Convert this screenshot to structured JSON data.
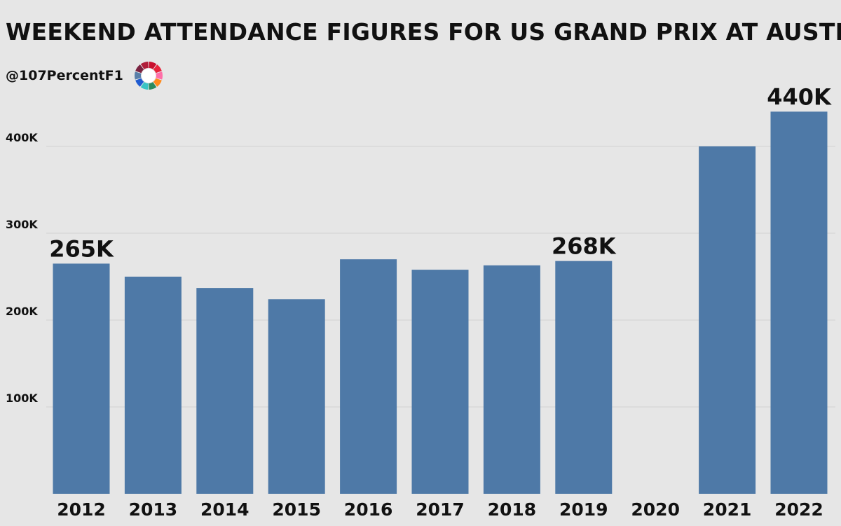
{
  "header": {
    "title": "WEEKEND ATTENDANCE FIGURES FOR US GRAND PRIX AT AUSTIN",
    "handle": "@107PercentF1",
    "logo_icon": "ring-logo-icon"
  },
  "colors": {
    "background": "#e6e6e6",
    "bar": "#4e79a7",
    "grid": "#d2d2d2",
    "text": "#111111",
    "logo_segments": [
      "#c8102e",
      "#e8233b",
      "#ff6fa8",
      "#ff8a1c",
      "#2a8a5e",
      "#39c4c4",
      "#1f5bd1",
      "#5a7fa8",
      "#7a2340",
      "#b01e3a"
    ]
  },
  "chart_data": {
    "type": "bar",
    "title": "WEEKEND ATTENDANCE FIGURES FOR US GRAND PRIX AT AUSTIN",
    "xlabel": "",
    "ylabel": "",
    "categories": [
      "2012",
      "2013",
      "2014",
      "2015",
      "2016",
      "2017",
      "2018",
      "2019",
      "2020",
      "2021",
      "2022"
    ],
    "values": [
      265000,
      250000,
      237000,
      224000,
      270000,
      258000,
      263000,
      268000,
      0,
      400000,
      440000
    ],
    "ylim": [
      0,
      440000
    ],
    "yticks": [
      100000,
      200000,
      300000,
      400000
    ],
    "ytick_labels": [
      "100K",
      "200K",
      "300K",
      "400K"
    ],
    "grid": true,
    "legend": "none",
    "annotations": [
      {
        "category": "2012",
        "text": "265K"
      },
      {
        "category": "2019",
        "text": "268K"
      },
      {
        "category": "2022",
        "text": "440K"
      }
    ]
  }
}
